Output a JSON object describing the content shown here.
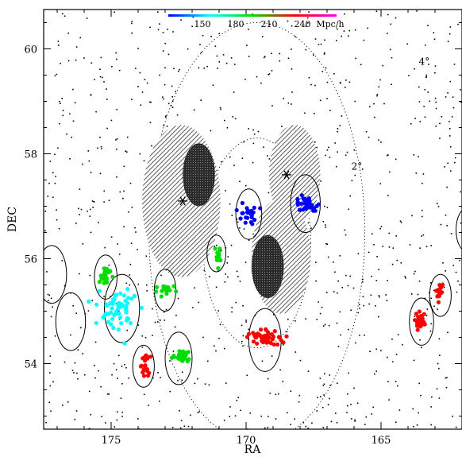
{
  "chart_data": {
    "type": "scatter",
    "xlabel": "RA",
    "ylabel": "DEC",
    "xlim": [
      177.5,
      162
    ],
    "ylim": [
      52.75,
      60.75
    ],
    "xticks": [
      175,
      170,
      165
    ],
    "yticks": [
      54,
      56,
      58,
      60
    ],
    "xtick_labels": [
      "175",
      "170",
      "165"
    ],
    "ytick_labels": [
      "54",
      "56",
      "58",
      "60"
    ],
    "colorbar": {
      "ticks": [
        "150",
        "180",
        "210",
        "240"
      ],
      "unit": "Mpc/h",
      "colors": [
        "#0000ff",
        "#00ffff",
        "#00dd00",
        "#ff0000",
        "#ff00ff"
      ]
    },
    "dotted_circles": [
      {
        "label": "2°",
        "ra": 169.6,
        "dec": 56.3,
        "radius_deg": 2.0,
        "label_ra": 166.1,
        "label_dec": 57.7
      },
      {
        "label": "4°",
        "ra": 169.6,
        "dec": 56.5,
        "radius_deg": 4.0,
        "label_ra": 163.6,
        "label_dec": 59.7
      }
    ],
    "shaded_disks": [
      {
        "ra": 172.4,
        "dec": 57.1,
        "r": 1.45,
        "core_r": 0.6,
        "core_ra": 171.75,
        "core_dec": 57.6
      },
      {
        "ra": 168.2,
        "dec": 57.6,
        "r": 0.95,
        "core_r": 0,
        "core_ra": 168.2,
        "core_dec": 57.6
      },
      {
        "ra": 168.7,
        "dec": 56.05,
        "r": 1.1,
        "core_r": 0.6,
        "core_ra": 169.2,
        "core_dec": 55.85
      }
    ],
    "star_markers": [
      {
        "ra": 172.35,
        "dec": 57.1
      },
      {
        "ra": 168.5,
        "dec": 57.6
      }
    ],
    "open_circles": [
      {
        "ra": 176.5,
        "dec": 54.8,
        "r": 0.55
      },
      {
        "ra": 177.2,
        "dec": 55.7,
        "r": 0.55
      },
      {
        "ra": 175.2,
        "dec": 55.65,
        "r": 0.42
      },
      {
        "ra": 174.6,
        "dec": 55.05,
        "r": 0.65
      },
      {
        "ra": 173.0,
        "dec": 55.4,
        "r": 0.4
      },
      {
        "ra": 173.8,
        "dec": 53.95,
        "r": 0.4
      },
      {
        "ra": 172.5,
        "dec": 54.1,
        "r": 0.5
      },
      {
        "ra": 171.1,
        "dec": 56.1,
        "r": 0.35
      },
      {
        "ra": 169.9,
        "dec": 56.85,
        "r": 0.48
      },
      {
        "ra": 167.8,
        "dec": 57.05,
        "r": 0.55
      },
      {
        "ra": 169.3,
        "dec": 54.45,
        "r": 0.6
      },
      {
        "ra": 163.5,
        "dec": 54.8,
        "r": 0.45
      },
      {
        "ra": 162.8,
        "dec": 55.3,
        "r": 0.4
      },
      {
        "ra": 161.8,
        "dec": 56.55,
        "r": 0.42
      }
    ],
    "clusters": [
      {
        "name": "blue-a",
        "color": "#0000ff",
        "ra": 169.95,
        "dec": 56.85,
        "sra": 0.3,
        "sdec": 0.2,
        "n": 24
      },
      {
        "name": "blue-b",
        "color": "#0000ff",
        "ra": 167.8,
        "dec": 57.05,
        "sra": 0.4,
        "sdec": 0.12,
        "n": 34
      },
      {
        "name": "blue-c",
        "color": "#0000ff",
        "ra": 161.8,
        "dec": 56.55,
        "sra": 0.1,
        "sdec": 0.15,
        "n": 8
      },
      {
        "name": "cyan-a",
        "color": "#00ffff",
        "ra": 174.7,
        "dec": 55.05,
        "sra": 0.65,
        "sdec": 0.3,
        "n": 58
      },
      {
        "name": "green-a",
        "color": "#00dd00",
        "ra": 175.2,
        "dec": 55.65,
        "sra": 0.22,
        "sdec": 0.18,
        "n": 24
      },
      {
        "name": "green-b",
        "color": "#00dd00",
        "ra": 173.0,
        "dec": 55.4,
        "sra": 0.35,
        "sdec": 0.12,
        "n": 18
      },
      {
        "name": "green-c",
        "color": "#00dd00",
        "ra": 172.4,
        "dec": 54.15,
        "sra": 0.3,
        "sdec": 0.12,
        "n": 34
      },
      {
        "name": "green-d",
        "color": "#00dd00",
        "ra": 171.05,
        "dec": 56.1,
        "sra": 0.15,
        "sdec": 0.18,
        "n": 14
      },
      {
        "name": "red-a",
        "color": "#ff0000",
        "ra": 169.3,
        "dec": 54.5,
        "sra": 0.5,
        "sdec": 0.15,
        "n": 50
      },
      {
        "name": "red-b",
        "color": "#ff0000",
        "ra": 173.75,
        "dec": 54.0,
        "sra": 0.15,
        "sdec": 0.22,
        "n": 22
      },
      {
        "name": "red-c",
        "color": "#ff0000",
        "ra": 163.5,
        "dec": 54.8,
        "sra": 0.22,
        "sdec": 0.15,
        "n": 30
      },
      {
        "name": "red-d",
        "color": "#ff0000",
        "ra": 162.8,
        "dec": 55.35,
        "sra": 0.12,
        "sdec": 0.18,
        "n": 18
      }
    ],
    "field_points": {
      "color": "#000000",
      "n": 900
    }
  }
}
